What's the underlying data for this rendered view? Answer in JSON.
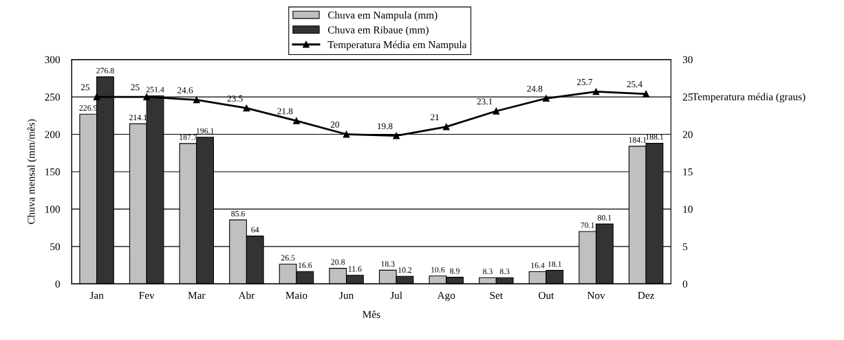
{
  "chart_data": {
    "type": "bar",
    "xlabel": "Mês",
    "ylabel": "Chuva mensal (mm/mês)",
    "y2label": "Temperatura média (graus)",
    "categories": [
      "Jan",
      "Fev",
      "Mar",
      "Abr",
      "Maio",
      "Jun",
      "Jul",
      "Ago",
      "Set",
      "Out",
      "Nov",
      "Dez"
    ],
    "series": [
      {
        "name": "Chuva em Nampula (mm)",
        "color": "#c0c0c0",
        "values": [
          226.9,
          214.1,
          187.7,
          85.6,
          26.5,
          20.8,
          18.3,
          10.6,
          8.3,
          16.4,
          70.1,
          184.1
        ]
      },
      {
        "name": "Chuva em Ribaue (mm)",
        "color": "#333333",
        "values": [
          276.8,
          251.4,
          196.1,
          64,
          16.6,
          11.6,
          10.2,
          8.9,
          8.3,
          18.1,
          80.1,
          188.1
        ]
      },
      {
        "name": "Temperatura Média em Nampula",
        "type": "line",
        "axis": "y2",
        "color": "#000000",
        "marker": "triangle",
        "values": [
          25,
          25,
          24.6,
          23.5,
          21.8,
          20,
          19.8,
          21,
          23.1,
          24.8,
          25.7,
          25.4
        ]
      }
    ],
    "ylim": [
      0,
      300
    ],
    "yticks": [
      0,
      50,
      100,
      150,
      200,
      250,
      300
    ],
    "y2lim": [
      0,
      30
    ],
    "y2ticks": [
      0,
      5,
      10,
      15,
      20,
      25,
      30
    ],
    "grid": "y",
    "legend": "top",
    "data_labels": true
  }
}
